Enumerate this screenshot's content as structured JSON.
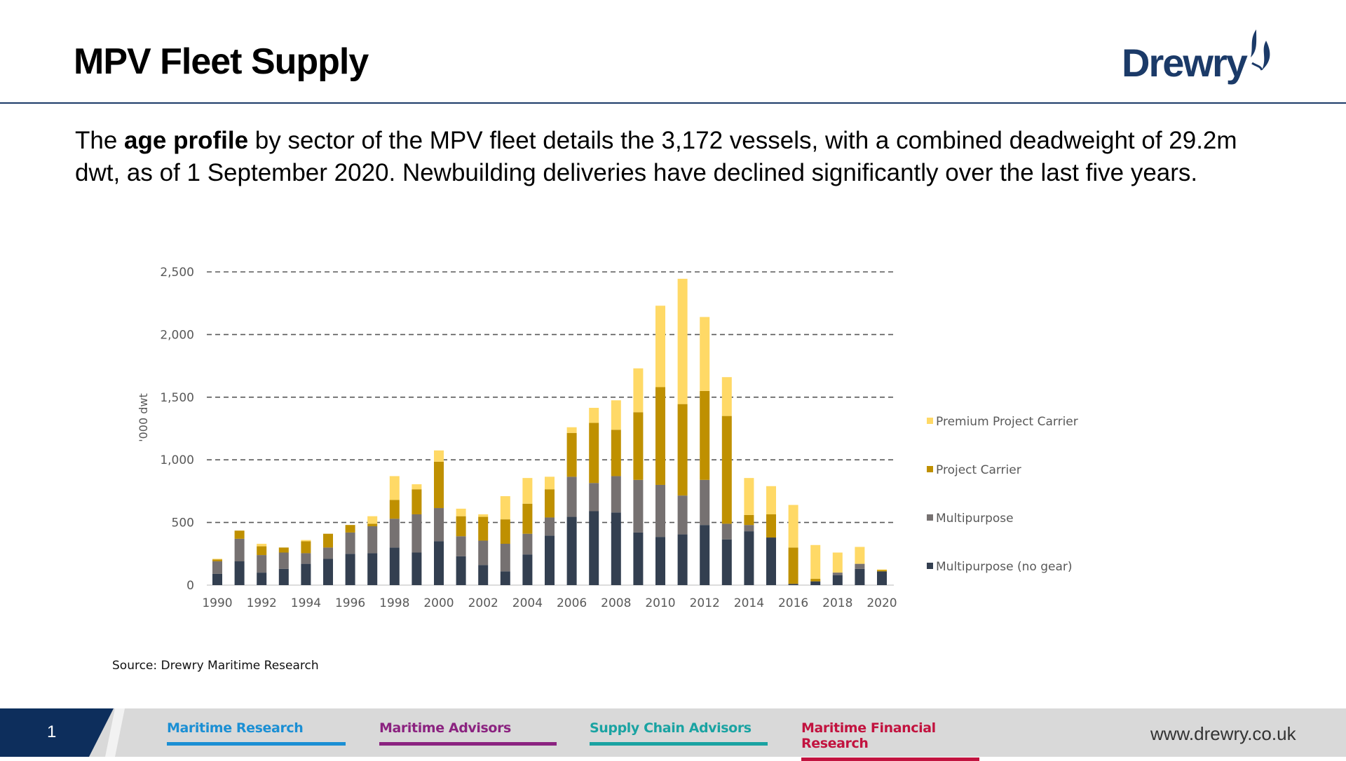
{
  "header": {
    "title": "MPV Fleet Supply",
    "logo_text": "Drewry"
  },
  "intro": {
    "part1": "The ",
    "bold": "age profile",
    "part2": " by sector of the MPV fleet details the 3,172 vessels, with a combined deadweight of 29.2m dwt, as of 1 September 2020.  Newbuilding deliveries have declined significantly over the last five years."
  },
  "colors": {
    "brand_navy": "#1b3a68",
    "premium_project_carrier": "#ffd966",
    "project_carrier": "#bf9000",
    "multipurpose": "#767171",
    "multipurpose_no_gear": "#333f50"
  },
  "chart_data": {
    "type": "bar",
    "stacked": true,
    "ylabel": "'000 dwt",
    "ylim": [
      0,
      2500
    ],
    "yticks": [
      "0",
      "500",
      "1,000",
      "1,500",
      "2,000",
      "2,500"
    ],
    "ytick_values": [
      0,
      500,
      1000,
      1500,
      2000,
      2500
    ],
    "grid": "dashed horizontal",
    "legend_position": "right",
    "categories": [
      "1990",
      "1991",
      "1992",
      "1993",
      "1994",
      "1995",
      "1996",
      "1997",
      "1998",
      "1999",
      "2000",
      "2001",
      "2002",
      "2003",
      "2004",
      "2005",
      "2006",
      "2007",
      "2008",
      "2009",
      "2010",
      "2011",
      "2012",
      "2013",
      "2014",
      "2015",
      "2016",
      "2017",
      "2018",
      "2019",
      "2020"
    ],
    "xtick_labels": [
      "1990",
      "",
      "1992",
      "",
      "1994",
      "",
      "1996",
      "",
      "1998",
      "",
      "2000",
      "",
      "2002",
      "",
      "2004",
      "",
      "2006",
      "",
      "2008",
      "",
      "2010",
      "",
      "2012",
      "",
      "2014",
      "",
      "2016",
      "",
      "2018",
      "",
      "2020"
    ],
    "series": [
      {
        "name": "Multipurpose (no gear)",
        "color": "#333f50",
        "values": [
          90,
          190,
          100,
          130,
          170,
          210,
          250,
          255,
          300,
          260,
          350,
          230,
          160,
          110,
          245,
          395,
          545,
          590,
          580,
          420,
          385,
          405,
          480,
          365,
          430,
          380,
          10,
          30,
          80,
          130,
          110
        ]
      },
      {
        "name": "Multipurpose",
        "color": "#767171",
        "values": [
          100,
          180,
          140,
          130,
          85,
          90,
          170,
          215,
          230,
          305,
          265,
          160,
          195,
          220,
          165,
          145,
          320,
          225,
          290,
          420,
          415,
          310,
          360,
          125,
          50,
          0,
          0,
          0,
          20,
          40,
          0
        ]
      },
      {
        "name": "Project Carrier",
        "color": "#bf9000",
        "values": [
          15,
          65,
          70,
          40,
          95,
          110,
          60,
          20,
          150,
          200,
          370,
          160,
          190,
          195,
          240,
          225,
          350,
          480,
          370,
          540,
          780,
          730,
          710,
          860,
          80,
          185,
          290,
          20,
          0,
          0,
          10
        ]
      },
      {
        "name": "Premium Project Carrier",
        "color": "#ffd966",
        "values": [
          5,
          0,
          20,
          0,
          10,
          0,
          0,
          60,
          190,
          40,
          90,
          60,
          20,
          185,
          205,
          100,
          45,
          120,
          235,
          350,
          650,
          1000,
          590,
          310,
          295,
          225,
          340,
          270,
          160,
          135,
          5
        ]
      }
    ],
    "legend": [
      "Premium Project Carrier",
      "Project Carrier",
      "Multipurpose",
      "Multipurpose (no gear)"
    ]
  },
  "source_note": "Source: Drewry Maritime Research",
  "footer": {
    "page_number": "1",
    "links": [
      "Maritime Research",
      "Maritime Advisors",
      "Supply Chain Advisors",
      "Maritime Financial Research"
    ],
    "website": "www.drewry.co.uk"
  }
}
